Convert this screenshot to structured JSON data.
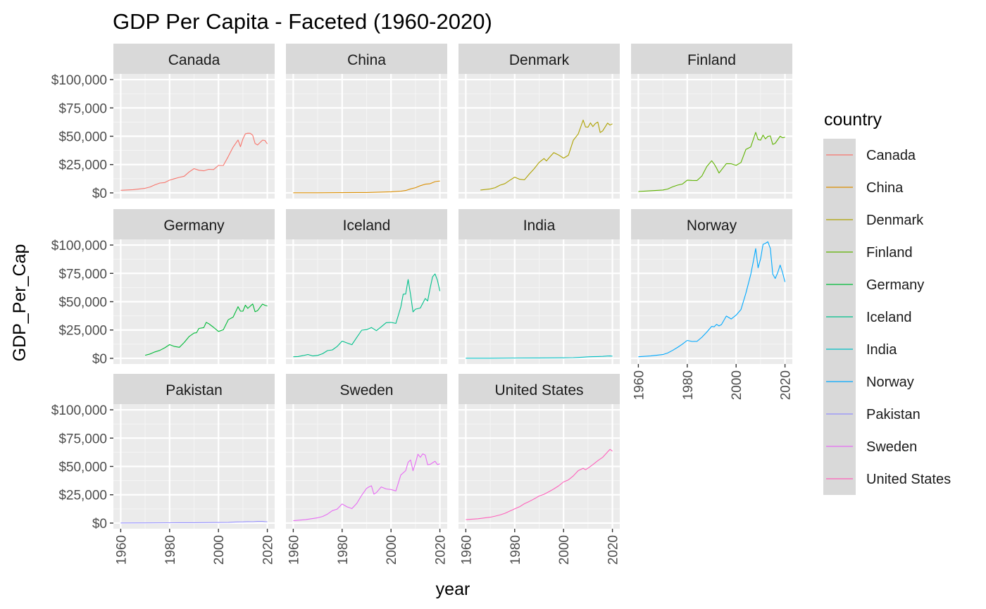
{
  "chart_data": {
    "type": "line",
    "title": "GDP Per Capita - Faceted (1960-2020)",
    "xlabel": "year",
    "ylabel": "GDP_Per_Cap",
    "xlim": [
      1960,
      2020
    ],
    "ylim": [
      0,
      100000
    ],
    "x_ticks": [
      1960,
      1980,
      2000,
      2020
    ],
    "y_ticks": [
      0,
      25000,
      50000,
      75000,
      100000
    ],
    "y_tick_labels": [
      "$0",
      "$25,000",
      "$50,000",
      "$75,000",
      "$100,000"
    ],
    "grid": true,
    "facet_ncol": 4,
    "legend": {
      "title": "country",
      "placement": "right"
    },
    "series": [
      {
        "name": "Canada",
        "color": "#F8766D",
        "x": [
          1960,
          1965,
          1970,
          1972,
          1974,
          1976,
          1978,
          1980,
          1982,
          1984,
          1986,
          1988,
          1990,
          1992,
          1994,
          1996,
          1998,
          2000,
          2002,
          2004,
          2006,
          2008,
          2009,
          2010,
          2011,
          2012,
          2013,
          2014,
          2015,
          2016,
          2018,
          2019,
          2020
        ],
        "y": [
          2300,
          2800,
          4100,
          5200,
          7100,
          8700,
          9100,
          11200,
          12500,
          13700,
          14700,
          18500,
          21400,
          20000,
          19500,
          20800,
          20600,
          24200,
          24200,
          32100,
          40400,
          46700,
          40800,
          47600,
          52200,
          52700,
          52600,
          50900,
          43600,
          42300,
          46500,
          46300,
          43300
        ]
      },
      {
        "name": "China",
        "color": "#DB8E00",
        "x": [
          1960,
          1970,
          1980,
          1990,
          2000,
          2004,
          2006,
          2008,
          2010,
          2012,
          2014,
          2016,
          2018,
          2019,
          2020
        ],
        "y": [
          90,
          110,
          195,
          320,
          960,
          1500,
          2100,
          3500,
          4550,
          6300,
          7700,
          8100,
          9900,
          10200,
          10400
        ]
      },
      {
        "name": "Denmark",
        "color": "#AEA200",
        "x": [
          1966,
          1970,
          1972,
          1974,
          1976,
          1978,
          1980,
          1982,
          1984,
          1986,
          1988,
          1990,
          1992,
          1993,
          1994,
          1996,
          1998,
          2000,
          2002,
          2004,
          2006,
          2008,
          2009,
          2010,
          2011,
          2012,
          2013,
          2014,
          2015,
          2016,
          2018,
          2019,
          2020
        ],
        "y": [
          2500,
          3500,
          4600,
          6800,
          8200,
          11100,
          13900,
          12000,
          11600,
          16700,
          21400,
          26900,
          30300,
          28200,
          30800,
          35600,
          33400,
          30700,
          33200,
          46500,
          52000,
          64300,
          58200,
          58000,
          61800,
          58500,
          61200,
          62500,
          53300,
          54700,
          61600,
          59800,
          61000
        ]
      },
      {
        "name": "Finland",
        "color": "#5EB300",
        "x": [
          1960,
          1965,
          1970,
          1972,
          1974,
          1976,
          1978,
          1980,
          1982,
          1984,
          1986,
          1988,
          1990,
          1991,
          1992,
          1993,
          1994,
          1996,
          1998,
          2000,
          2002,
          2004,
          2006,
          2008,
          2009,
          2010,
          2011,
          2012,
          2013,
          2014,
          2015,
          2016,
          2018,
          2019,
          2020
        ],
        "y": [
          1200,
          1900,
          2500,
          3400,
          5300,
          6800,
          7800,
          11200,
          11000,
          10900,
          14900,
          23300,
          28400,
          25500,
          21900,
          17500,
          20300,
          25800,
          25700,
          24300,
          26800,
          38400,
          40600,
          53400,
          47100,
          46500,
          51000,
          47700,
          49900,
          50300,
          42800,
          43800,
          50000,
          48700,
          49000
        ]
      },
      {
        "name": "Germany",
        "color": "#00BA38",
        "x": [
          1970,
          1972,
          1974,
          1976,
          1978,
          1980,
          1982,
          1984,
          1986,
          1988,
          1990,
          1991,
          1992,
          1994,
          1995,
          1996,
          1998,
          2000,
          2002,
          2004,
          2006,
          2008,
          2009,
          2010,
          2011,
          2012,
          2014,
          2015,
          2016,
          2018,
          2019,
          2020
        ],
        "y": [
          2700,
          3800,
          5700,
          7000,
          9300,
          12100,
          10500,
          9700,
          14000,
          19300,
          22300,
          22600,
          26400,
          27100,
          31700,
          30600,
          27300,
          23700,
          25200,
          34000,
          36400,
          45600,
          41700,
          41600,
          46900,
          44100,
          48000,
          41100,
          42100,
          47900,
          46800,
          46200
        ]
      },
      {
        "name": "Iceland",
        "color": "#00C08B",
        "x": [
          1960,
          1962,
          1964,
          1966,
          1968,
          1970,
          1972,
          1974,
          1976,
          1978,
          1980,
          1982,
          1984,
          1986,
          1988,
          1990,
          1992,
          1994,
          1996,
          1998,
          2000,
          2002,
          2004,
          2005,
          2006,
          2007,
          2008,
          2009,
          2010,
          2012,
          2014,
          2015,
          2016,
          2017,
          2018,
          2019,
          2020
        ],
        "y": [
          1400,
          1600,
          2400,
          3400,
          2100,
          2600,
          4100,
          6800,
          7400,
          10600,
          15200,
          13600,
          12000,
          18500,
          24800,
          25300,
          27200,
          24400,
          27800,
          31500,
          31700,
          30800,
          45200,
          56600,
          56800,
          69600,
          56000,
          41000,
          43400,
          44400,
          52800,
          50600,
          61900,
          72000,
          74500,
          68900,
          59300
        ]
      },
      {
        "name": "India",
        "color": "#00BFC4",
        "x": [
          1960,
          1970,
          1980,
          1990,
          2000,
          2004,
          2006,
          2008,
          2010,
          2012,
          2014,
          2016,
          2018,
          2019,
          2020
        ],
        "y": [
          80,
          110,
          270,
          370,
          440,
          620,
          800,
          1000,
          1350,
          1450,
          1570,
          1730,
          2000,
          2100,
          1900
        ]
      },
      {
        "name": "Norway",
        "color": "#00A9FF",
        "x": [
          1960,
          1965,
          1970,
          1972,
          1974,
          1976,
          1978,
          1980,
          1982,
          1984,
          1986,
          1988,
          1990,
          1991,
          1992,
          1993,
          1994,
          1996,
          1998,
          2000,
          2002,
          2004,
          2006,
          2007,
          2008,
          2009,
          2010,
          2011,
          2012,
          2013,
          2014,
          2015,
          2016,
          2017,
          2018,
          2019,
          2020
        ],
        "y": [
          1400,
          2100,
          3300,
          4700,
          7000,
          9600,
          12500,
          15800,
          14900,
          15000,
          18600,
          23200,
          28200,
          27800,
          30000,
          28600,
          29800,
          37300,
          34700,
          38100,
          43100,
          57600,
          74100,
          85100,
          96900,
          79900,
          87700,
          100600,
          101500,
          102900,
          97000,
          74300,
          70500,
          75500,
          82300,
          75800,
          67400
        ]
      },
      {
        "name": "Pakistan",
        "color": "#9590FF",
        "x": [
          1960,
          1970,
          1980,
          1990,
          2000,
          2004,
          2006,
          2008,
          2010,
          2012,
          2014,
          2016,
          2018,
          2019,
          2020
        ],
        "y": [
          85,
          170,
          300,
          370,
          530,
          650,
          840,
          1000,
          1060,
          1260,
          1230,
          1470,
          1480,
          1290,
          1190
        ]
      },
      {
        "name": "Sweden",
        "color": "#E76BF3",
        "x": [
          1960,
          1965,
          1970,
          1972,
          1974,
          1976,
          1978,
          1980,
          1982,
          1984,
          1986,
          1988,
          1990,
          1991,
          1992,
          1993,
          1994,
          1996,
          1998,
          2000,
          2002,
          2004,
          2006,
          2007,
          2008,
          2009,
          2010,
          2011,
          2012,
          2013,
          2014,
          2015,
          2016,
          2018,
          2019,
          2020
        ],
        "y": [
          2100,
          3000,
          4700,
          5800,
          7900,
          11000,
          12400,
          16900,
          14300,
          12800,
          17400,
          24600,
          30600,
          32000,
          32900,
          25500,
          26900,
          31900,
          30100,
          29600,
          28400,
          42400,
          46300,
          53700,
          55700,
          46200,
          52900,
          60800,
          58000,
          61100,
          60000,
          51500,
          51800,
          54600,
          51600,
          52300
        ]
      },
      {
        "name": "United States",
        "color": "#FF62BC",
        "x": [
          1960,
          1965,
          1970,
          1972,
          1974,
          1976,
          1978,
          1980,
          1982,
          1984,
          1986,
          1988,
          1990,
          1992,
          1994,
          1996,
          1998,
          2000,
          2002,
          2004,
          2006,
          2008,
          2009,
          2010,
          2012,
          2014,
          2016,
          2018,
          2019,
          2020
        ],
        "y": [
          3000,
          3800,
          5200,
          6100,
          7200,
          8600,
          10600,
          12600,
          14400,
          17100,
          19100,
          21400,
          23900,
          25400,
          27700,
          30100,
          32900,
          36300,
          38100,
          41700,
          46300,
          48400,
          47100,
          48500,
          51600,
          55100,
          58000,
          62800,
          65100,
          63500
        ]
      }
    ]
  }
}
